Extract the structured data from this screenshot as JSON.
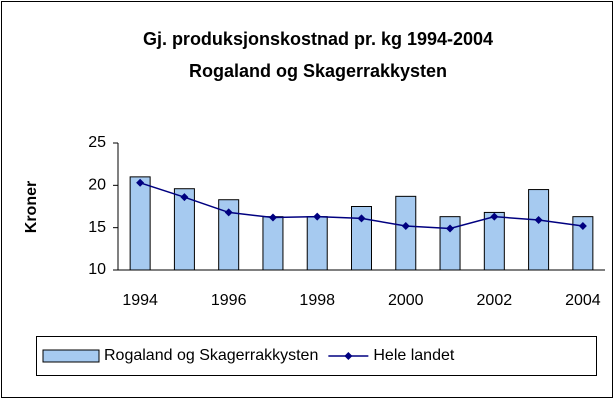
{
  "chart_data": {
    "type": "bar",
    "title": "Gj. produksjonskostnad pr. kg 1994-2004",
    "subtitle": "Rogaland og Skagerrakkysten",
    "ylabel": "Kroner",
    "categories": [
      "1994",
      null,
      "1996",
      null,
      "1998",
      null,
      "2000",
      null,
      "2002",
      null,
      "2004"
    ],
    "series": [
      {
        "name": "Rogaland og Skagerrakkysten",
        "type": "bar",
        "color": "#a6caf0",
        "values": [
          21.0,
          19.6,
          18.3,
          16.3,
          16.3,
          17.5,
          18.7,
          16.3,
          16.8,
          19.5,
          16.3
        ]
      },
      {
        "name": "Hele landet",
        "type": "line",
        "color": "#000080",
        "values": [
          20.3,
          18.6,
          16.8,
          16.2,
          16.3,
          16.1,
          15.2,
          14.9,
          16.3,
          15.9,
          15.2
        ]
      }
    ],
    "ylim": [
      10,
      25
    ],
    "yticks": [
      10,
      15,
      20,
      25
    ],
    "grid": false,
    "legend": "bottom"
  }
}
